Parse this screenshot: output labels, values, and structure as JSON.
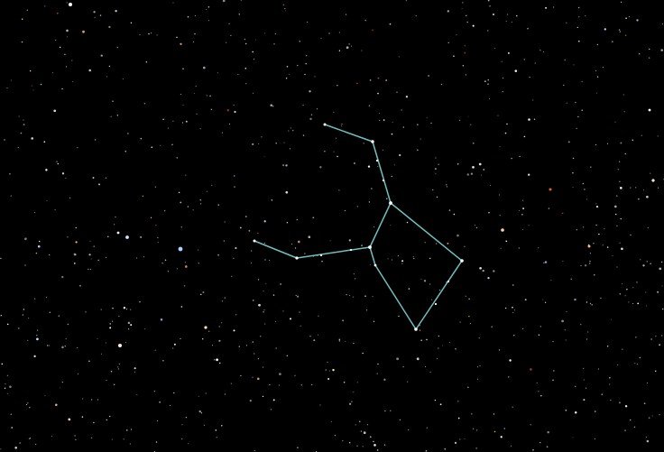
{
  "scene": {
    "subject": "constellation-star-field",
    "background_color": "#000000",
    "line_color": "#6fbfbf",
    "star_colors": [
      "#ffffff",
      "#cfe3ff",
      "#ffe2b8",
      "#ffb27a",
      "#e05a3a"
    ]
  }
}
